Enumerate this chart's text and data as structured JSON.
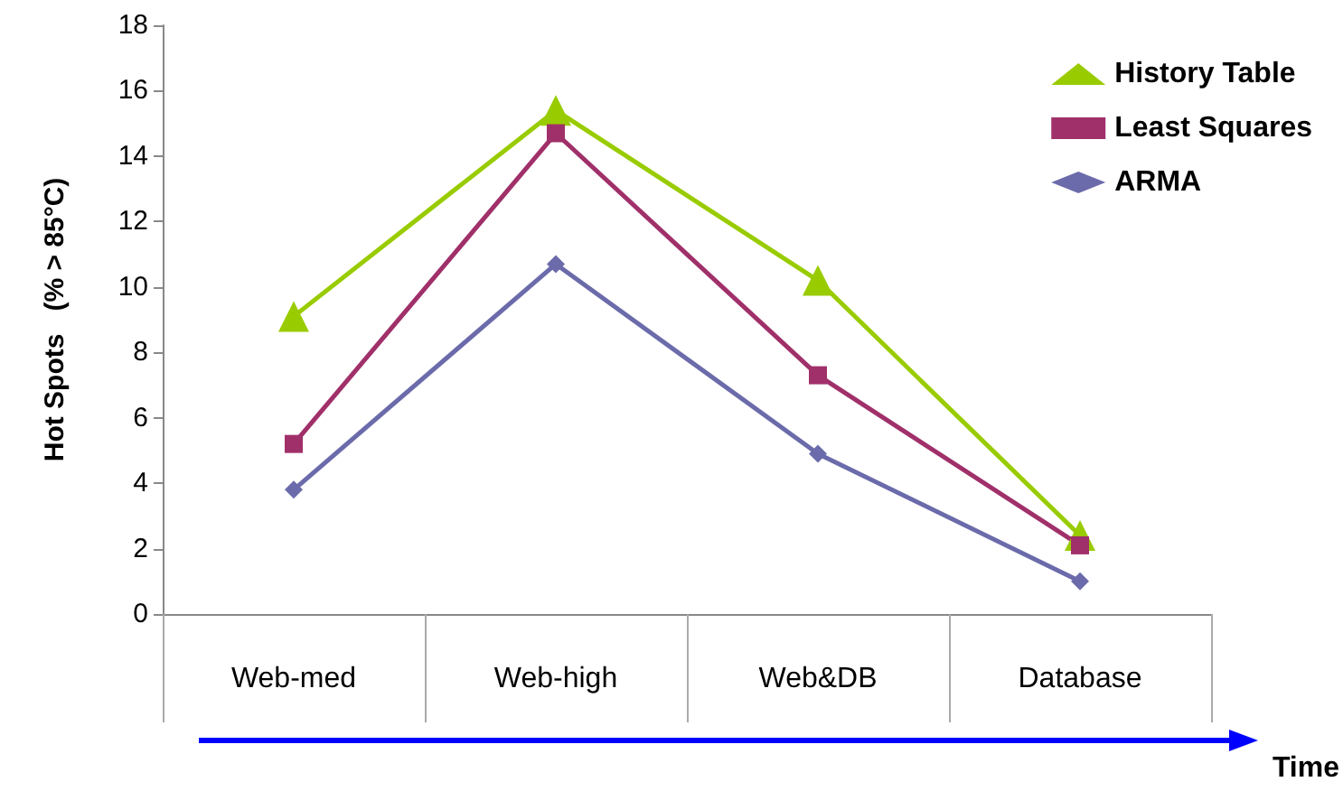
{
  "chart_data": {
    "type": "line",
    "ylabel": "Hot Spots   (% > 85°C)",
    "xlabel": "Time",
    "categories": [
      "Web-med",
      "Web-high",
      "Web&DB",
      "Database"
    ],
    "series": [
      {
        "name": "History Table",
        "color": "#99cc00",
        "marker": "triangle",
        "values": [
          9.1,
          15.4,
          10.2,
          2.4
        ]
      },
      {
        "name": "Least Squares",
        "color": "#a0306a",
        "marker": "square",
        "values": [
          5.2,
          14.7,
          7.3,
          2.1
        ]
      },
      {
        "name": "ARMA",
        "color": "#6b6bab",
        "marker": "diamond",
        "values": [
          3.8,
          10.7,
          4.9,
          1.0
        ]
      }
    ],
    "ylim": [
      0,
      18
    ],
    "yticks": [
      0,
      2,
      4,
      6,
      8,
      10,
      12,
      14,
      16,
      18
    ],
    "grid": false,
    "legend": "top right"
  }
}
